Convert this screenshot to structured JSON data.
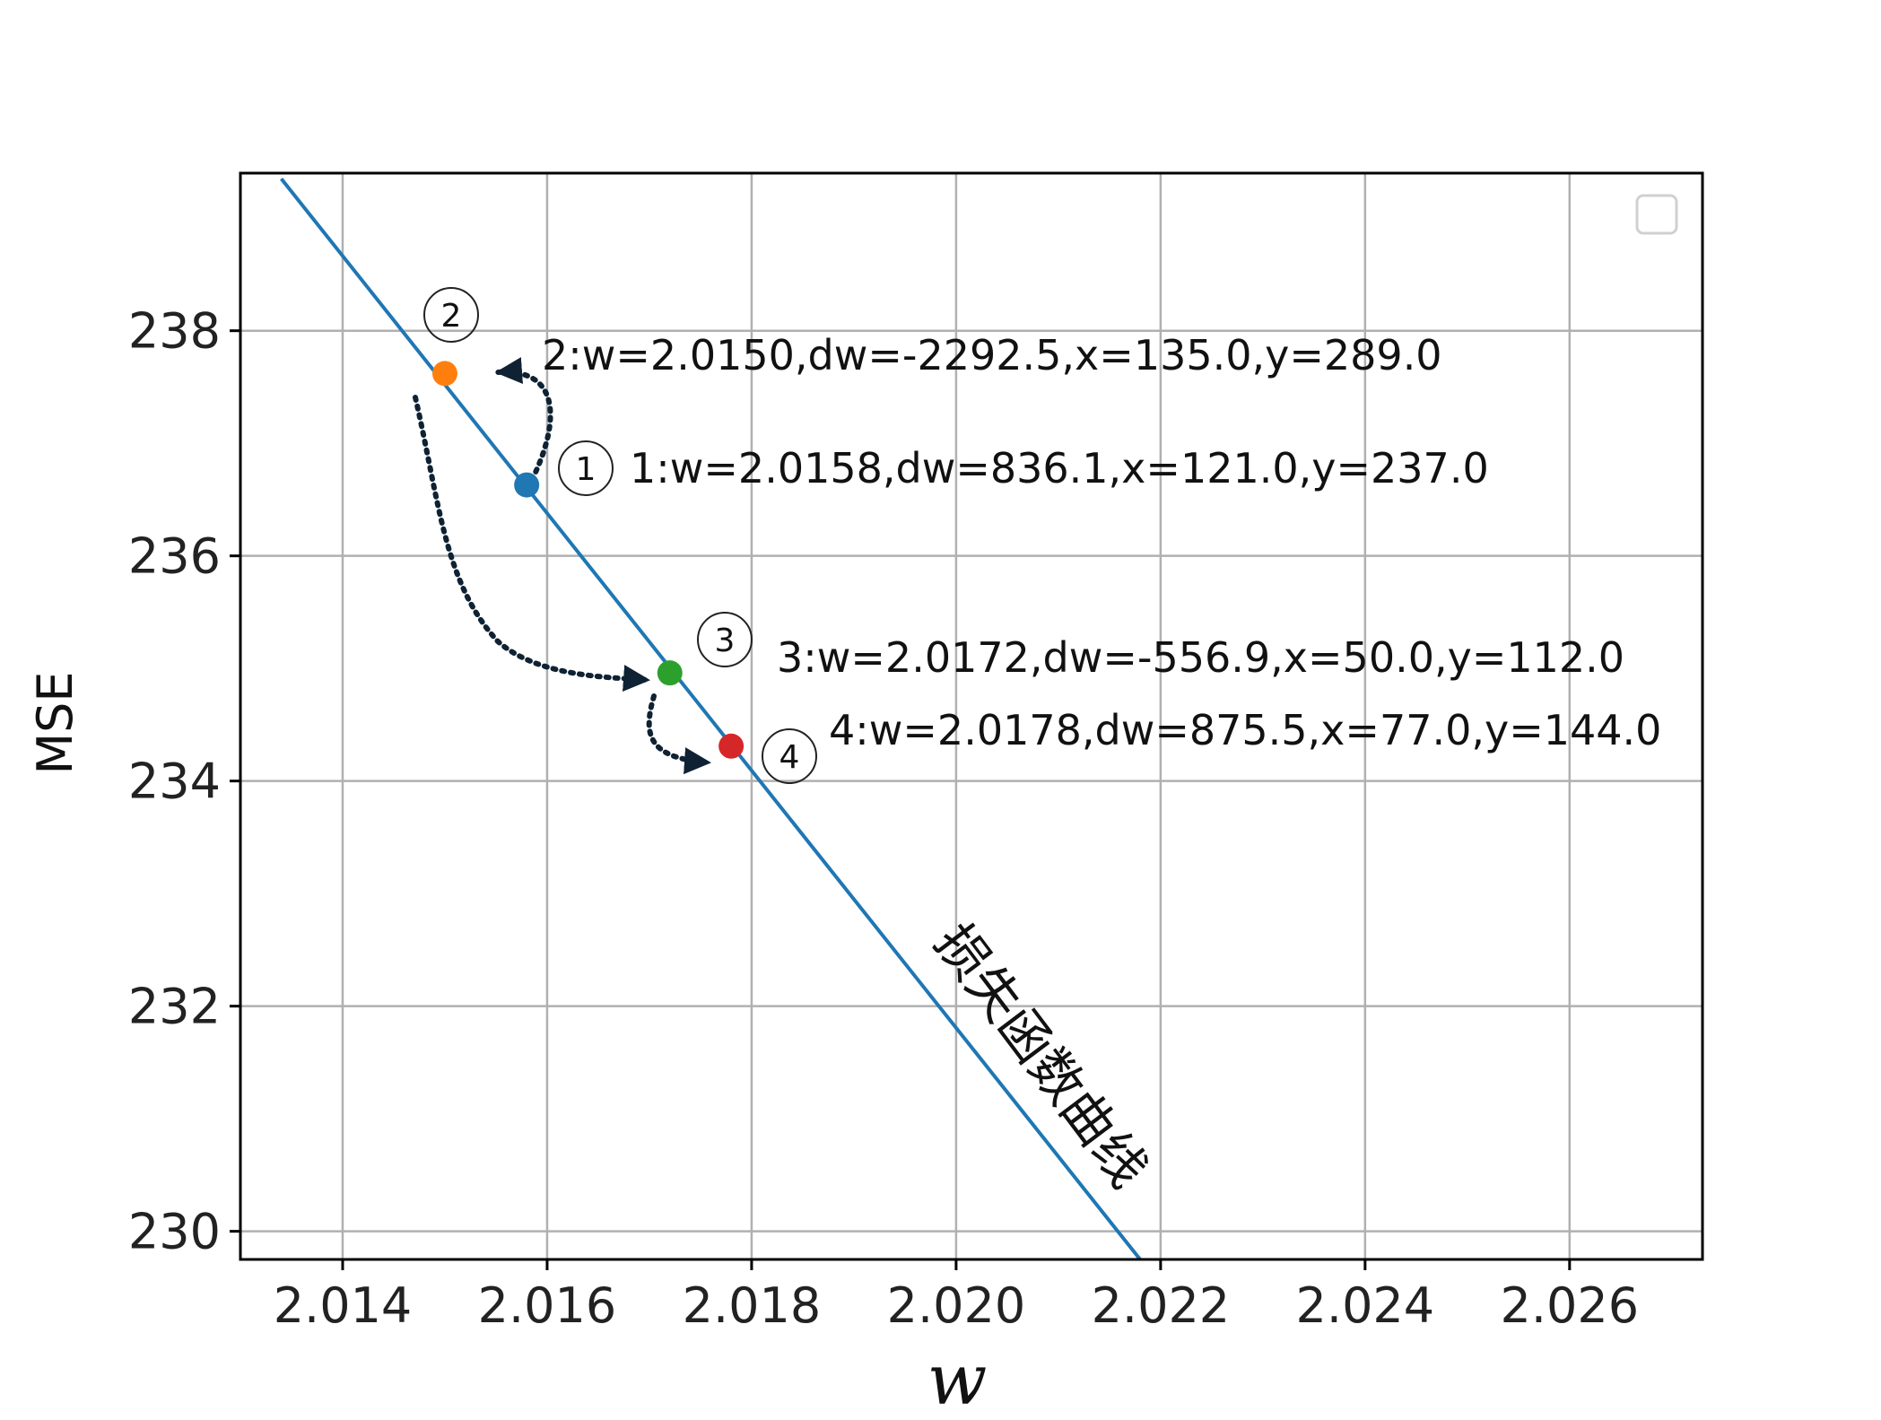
{
  "chart_data": {
    "type": "line",
    "xlabel": "w",
    "ylabel": "MSE",
    "xlim": [
      2.013,
      2.0273
    ],
    "ylim": [
      229.75,
      239.4
    ],
    "x_ticks": [
      2.014,
      2.016,
      2.018,
      2.02,
      2.022,
      2.024,
      2.026
    ],
    "x_tick_labels": [
      "2.014",
      "2.016",
      "2.018",
      "2.020",
      "2.022",
      "2.024",
      "2.026"
    ],
    "y_ticks": [
      230,
      232,
      234,
      236,
      238
    ],
    "y_tick_labels": [
      "230",
      "232",
      "234",
      "236",
      "238"
    ],
    "grid": true,
    "legend": "top-right (empty)",
    "series": [
      {
        "color": "#1f77b4",
        "x": [
          2.0134,
          2.0218
        ],
        "y": [
          239.35,
          229.75
        ]
      }
    ],
    "curve_label": "损失函数曲线",
    "points": [
      {
        "step": "1",
        "w": 2.0158,
        "mse": 236.63,
        "color": "#1f77b4",
        "label": "1:w=2.0158,dw=836.1,x=121.0,y=237.0"
      },
      {
        "step": "2",
        "w": 2.015,
        "mse": 237.62,
        "color": "#ff7f0e",
        "label": "2:w=2.0150,dw=-2292.5,x=135.0,y=289.0"
      },
      {
        "step": "3",
        "w": 2.0172,
        "mse": 234.96,
        "color": "#2ca02c",
        "label": "3:w=2.0172,dw=-556.9,x=50.0,y=112.0"
      },
      {
        "step": "4",
        "w": 2.0178,
        "mse": 234.31,
        "color": "#d62728",
        "label": "4:w=2.0178,dw=875.5,x=77.0,y=144.0"
      }
    ],
    "step_markers": [
      "1",
      "2",
      "3",
      "4"
    ]
  }
}
